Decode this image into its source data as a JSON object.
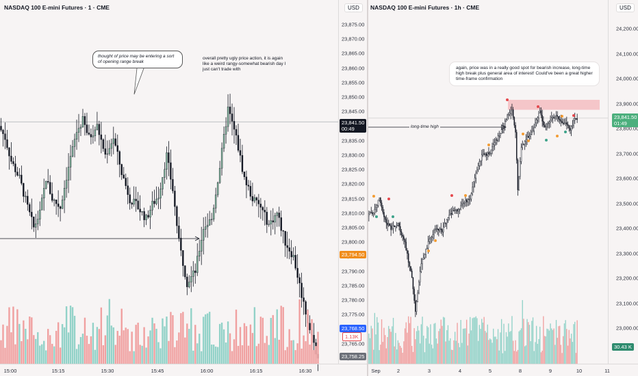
{
  "left": {
    "title": "NASDAQ 100 E-mini Futures · 1 · CME",
    "currency": "USD",
    "y_ticks": [
      "23,875.00",
      "23,870.00",
      "23,865.00",
      "23,860.00",
      "23,855.00",
      "23,850.00",
      "23,845.00",
      "23,840.00",
      "23,835.00",
      "23,830.00",
      "23,825.00",
      "23,820.00",
      "23,815.00",
      "23,810.00",
      "23,805.00",
      "23,800.00",
      "23,795.00",
      "23,790.00",
      "23,785.00",
      "23,780.00",
      "23,775.00",
      "23,770.00",
      "23,765.00",
      "23,760.00"
    ],
    "x_ticks": [
      "15:00",
      "15:15",
      "15:30",
      "15:45",
      "16:00",
      "16:15",
      "16:30"
    ],
    "last_price": "23,841.50",
    "countdown": "00:49",
    "tag_orange": "23,794.50",
    "tag_blue": "23,768.50",
    "tag_volume": "1.13K",
    "tag_gray": "23,758.25",
    "bubble_text": "thought of price may be entering a sort of opening range break",
    "note_text": "overall pretty ugly price action, it is again like a weird rangy-somewhat bearish day I just can't trade with",
    "colors": {
      "up": "#7fb29a",
      "down": "#131722",
      "vol_up": "#92d2c8",
      "vol_down": "#f0a0a0"
    }
  },
  "right": {
    "title": "NASDAQ 100 E-mini Futures · 1h · CME",
    "currency": "USD",
    "y_ticks": [
      "24,200.00",
      "24,100.00",
      "24,000.00",
      "23,900.00",
      "23,800.00",
      "23,700.00",
      "23,600.00",
      "23,500.00",
      "23,400.00",
      "23,300.00",
      "23,200.00",
      "23,100.00",
      "23,000.00"
    ],
    "x_ticks": [
      "Sep",
      "2",
      "3",
      "4",
      "5",
      "8",
      "9",
      "10",
      "11"
    ],
    "last_price": "23,841.50",
    "countdown": "01:49",
    "volume_tag": "30.43 K",
    "line_label": "long-time high",
    "note_text": "again, price was in a really good spot for bearish increase, long-time high break plus general area of interest! Could've been a great higher time-frame confirmation",
    "colors": {
      "zone": "#f5c6c9",
      "tag_green": "#4caf7d",
      "dot_red": "#e5484d",
      "dot_orange": "#f39c34",
      "dot_green": "#3ea38a"
    }
  },
  "chart_data": [
    {
      "type": "candlestick",
      "title": "NASDAQ 100 E-mini Futures · 1 · CME",
      "timeframe": "1 minute",
      "ylim": [
        23757,
        23882
      ],
      "x_range": [
        "14:56",
        "16:41"
      ],
      "last_price": 23841.5,
      "annotations": [
        "thought of price may be entering a sort of opening range break",
        "overall pretty ugly price action, it is again like a weird rangy-somewhat bearish day I just can't trade with"
      ],
      "price_path": [
        [
          0,
          23840
        ],
        [
          3,
          23836
        ],
        [
          6,
          23828
        ],
        [
          10,
          23822
        ],
        [
          14,
          23812
        ],
        [
          17,
          23805
        ],
        [
          20,
          23810
        ],
        [
          23,
          23822
        ],
        [
          26,
          23815
        ],
        [
          30,
          23812
        ],
        [
          34,
          23826
        ],
        [
          38,
          23838
        ],
        [
          41,
          23842
        ],
        [
          44,
          23836
        ],
        [
          48,
          23840
        ],
        [
          52,
          23830
        ],
        [
          56,
          23836
        ],
        [
          60,
          23824
        ],
        [
          64,
          23815
        ],
        [
          68,
          23812
        ],
        [
          72,
          23808
        ],
        [
          75,
          23813
        ],
        [
          78,
          23816
        ],
        [
          82,
          23830
        ],
        [
          85,
          23818
        ],
        [
          88,
          23800
        ],
        [
          92,
          23786
        ],
        [
          96,
          23790
        ],
        [
          100,
          23805
        ],
        [
          104,
          23808
        ],
        [
          108,
          23826
        ],
        [
          112,
          23846
        ],
        [
          116,
          23836
        ],
        [
          120,
          23822
        ],
        [
          124,
          23815
        ],
        [
          128,
          23812
        ],
        [
          132,
          23806
        ],
        [
          136,
          23810
        ],
        [
          140,
          23800
        ],
        [
          144,
          23795
        ],
        [
          148,
          23782
        ],
        [
          152,
          23770
        ],
        [
          156,
          23760
        ]
      ]
    },
    {
      "type": "candlestick",
      "title": "NASDAQ 100 E-mini Futures · 1h · CME",
      "timeframe": "1 hour",
      "ylim": [
        22920,
        24260
      ],
      "x_categories": [
        "Sep",
        "2",
        "3",
        "4",
        "5",
        "8",
        "9",
        "10",
        "11"
      ],
      "last_price": 23841.5,
      "resistance_zone": [
        23875,
        23915
      ],
      "annotations": [
        "long-time high",
        "again, price was in a really good spot for bearish increase, long-time high break plus general area of interest! Could've been a great higher time-frame confirmation"
      ],
      "price_path": [
        [
          0,
          23450
        ],
        [
          6,
          23470
        ],
        [
          10,
          23520
        ],
        [
          14,
          23440
        ],
        [
          20,
          23400
        ],
        [
          26,
          23420
        ],
        [
          32,
          23340
        ],
        [
          38,
          23200
        ],
        [
          41,
          23060
        ],
        [
          46,
          23260
        ],
        [
          52,
          23340
        ],
        [
          58,
          23400
        ],
        [
          64,
          23390
        ],
        [
          70,
          23460
        ],
        [
          76,
          23470
        ],
        [
          82,
          23500
        ],
        [
          88,
          23520
        ],
        [
          94,
          23640
        ],
        [
          98,
          23690
        ],
        [
          104,
          23700
        ],
        [
          110,
          23750
        ],
        [
          116,
          23800
        ],
        [
          120,
          23850
        ],
        [
          124,
          23880
        ],
        [
          127,
          23780
        ],
        [
          129,
          23560
        ],
        [
          132,
          23720
        ],
        [
          136,
          23760
        ],
        [
          142,
          23790
        ],
        [
          148,
          23870
        ],
        [
          152,
          23800
        ],
        [
          158,
          23840
        ],
        [
          162,
          23850
        ],
        [
          166,
          23830
        ],
        [
          170,
          23820
        ],
        [
          174,
          23790
        ],
        [
          178,
          23841
        ]
      ]
    }
  ]
}
